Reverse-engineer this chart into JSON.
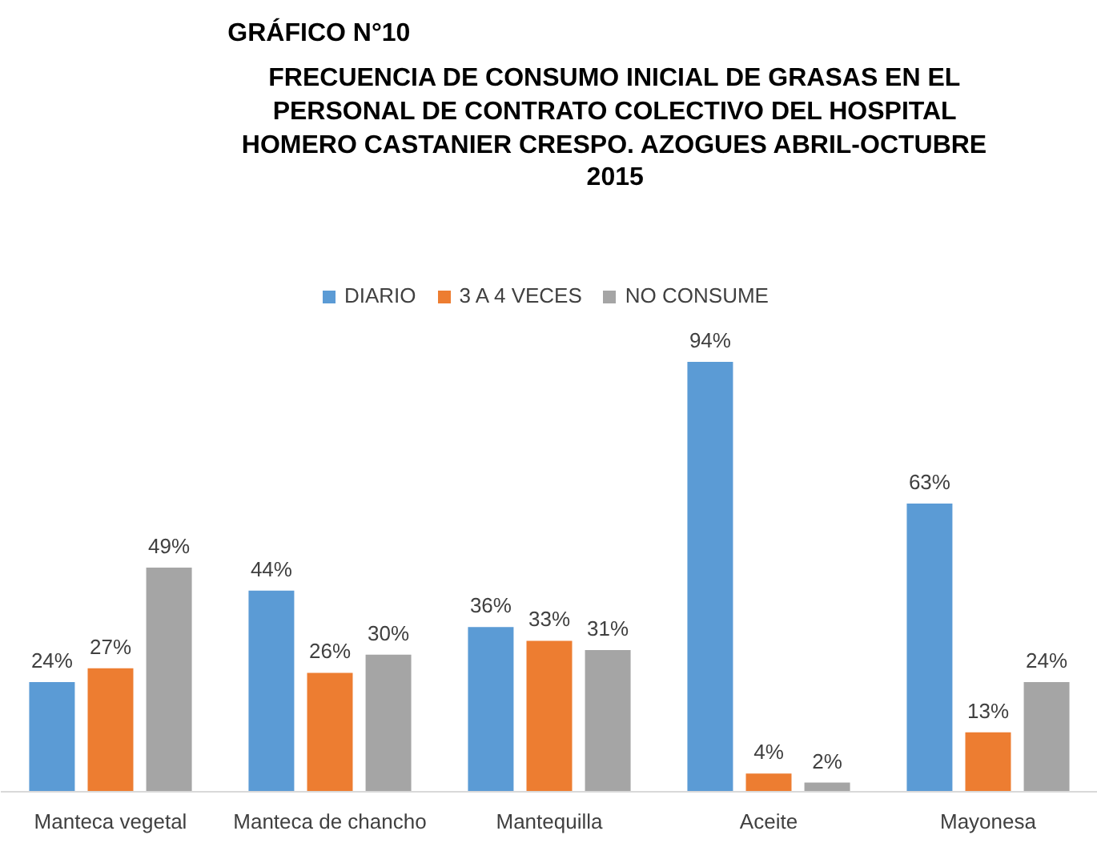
{
  "chart_data": {
    "type": "bar",
    "title": "GRÁFICO N°10",
    "subtitle": "FRECUENCIA DE CONSUMO INICIAL DE GRASAS EN EL PERSONAL DE CONTRATO COLECTIVO DEL HOSPITAL HOMERO CASTANIER CRESPO. AZOGUES ABRIL-OCTUBRE 2015",
    "categories": [
      "Manteca vegetal",
      "Manteca de chancho",
      "Mantequilla",
      "Aceite",
      "Mayonesa"
    ],
    "series": [
      {
        "name": "DIARIO",
        "color": "#5b9bd5",
        "values": [
          24,
          44,
          36,
          94,
          63
        ],
        "value_labels": [
          "24%",
          "44%",
          "36%",
          "94%",
          "63%"
        ]
      },
      {
        "name": "3 A 4 VECES",
        "color": "#ed7d31",
        "values": [
          27,
          26,
          33,
          4,
          13
        ],
        "value_labels": [
          "27%",
          "26%",
          "33%",
          "4%",
          "13%"
        ]
      },
      {
        "name": "NO CONSUME",
        "color": "#a5a5a5",
        "values": [
          49,
          30,
          31,
          2,
          24
        ],
        "value_labels": [
          "49%",
          "30%",
          "31%",
          "2%",
          "24%"
        ]
      }
    ],
    "legend": "top"
  }
}
